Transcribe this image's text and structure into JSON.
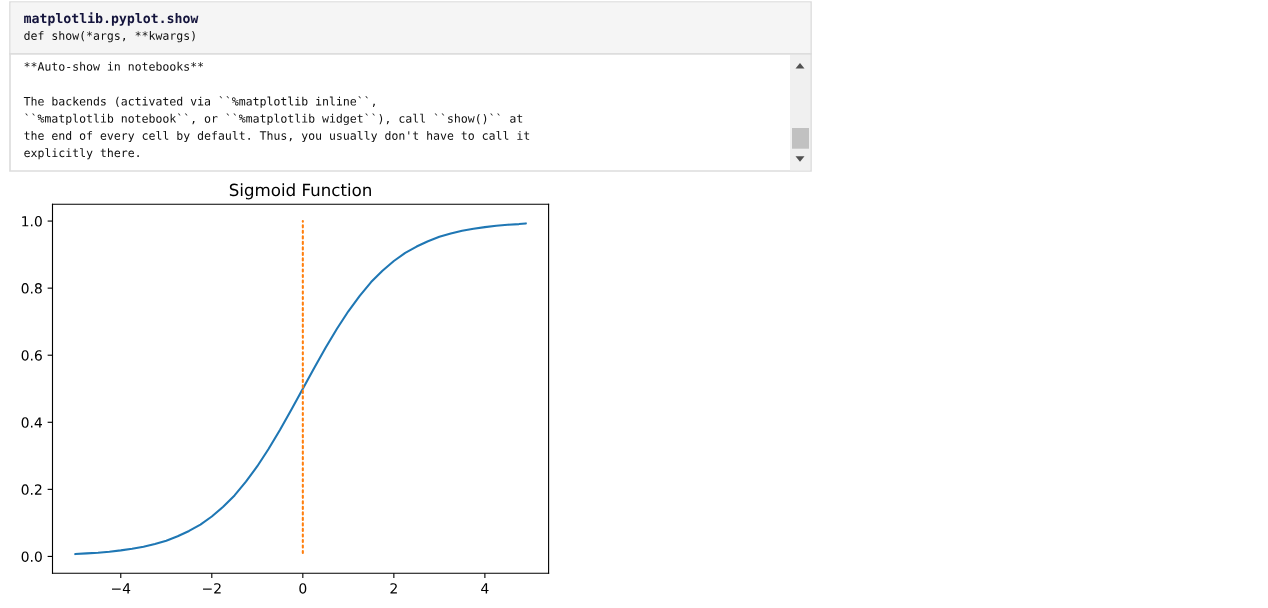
{
  "chart_data": {
    "type": "line",
    "title": "Sigmoid Function",
    "series": [
      {
        "color": "#1f77b4",
        "line_style": "solid",
        "x": [
          -5,
          -4.75,
          -4.5,
          -4.25,
          -4,
          -3.75,
          -3.5,
          -3.25,
          -3,
          -2.75,
          -2.5,
          -2.25,
          -2,
          -1.75,
          -1.5,
          -1.25,
          -1,
          -0.75,
          -0.5,
          -0.25,
          0,
          0.25,
          0.5,
          0.75,
          1,
          1.25,
          1.5,
          1.75,
          2,
          2.25,
          2.5,
          2.75,
          3,
          3.25,
          3.5,
          3.75,
          4,
          4.25,
          4.5,
          4.75,
          4.9
        ],
        "values": [
          0.007,
          0.009,
          0.011,
          0.014,
          0.018,
          0.023,
          0.029,
          0.037,
          0.047,
          0.06,
          0.076,
          0.095,
          0.119,
          0.148,
          0.182,
          0.223,
          0.269,
          0.321,
          0.378,
          0.438,
          0.5,
          0.562,
          0.622,
          0.679,
          0.731,
          0.777,
          0.818,
          0.852,
          0.881,
          0.905,
          0.924,
          0.94,
          0.953,
          0.963,
          0.971,
          0.977,
          0.982,
          0.986,
          0.989,
          0.991,
          0.993
        ]
      },
      {
        "color": "#ff7f0e",
        "line_style": "dotted",
        "x": [
          0,
          0
        ],
        "values": [
          0.01,
          1.0
        ]
      }
    ],
    "xlim": [
      -5.5,
      5.4
    ],
    "ylim": [
      -0.05,
      1.05
    ],
    "xticks": [
      {
        "value": -4,
        "label": "−4"
      },
      {
        "value": -2,
        "label": "−2"
      },
      0,
      2,
      4
    ],
    "yticks": [
      {
        "value": 0,
        "label": "0.0"
      },
      0.2,
      0.4,
      0.6,
      0.8,
      {
        "value": 1,
        "label": "1.0"
      }
    ],
    "annotations": [
      "matplotlib.pyplot.show",
      "def show(*args, **kwargs)",
      "**Auto-show in notebooks**",
      "The backends (activated via ``%matplotlib inline``,",
      "``%matplotlib notebook``, or ``%matplotlib widget``), call ``show()`` at",
      "the end of every cell by default. Thus, you usually don't have to call it",
      "explicitly there."
    ]
  }
}
